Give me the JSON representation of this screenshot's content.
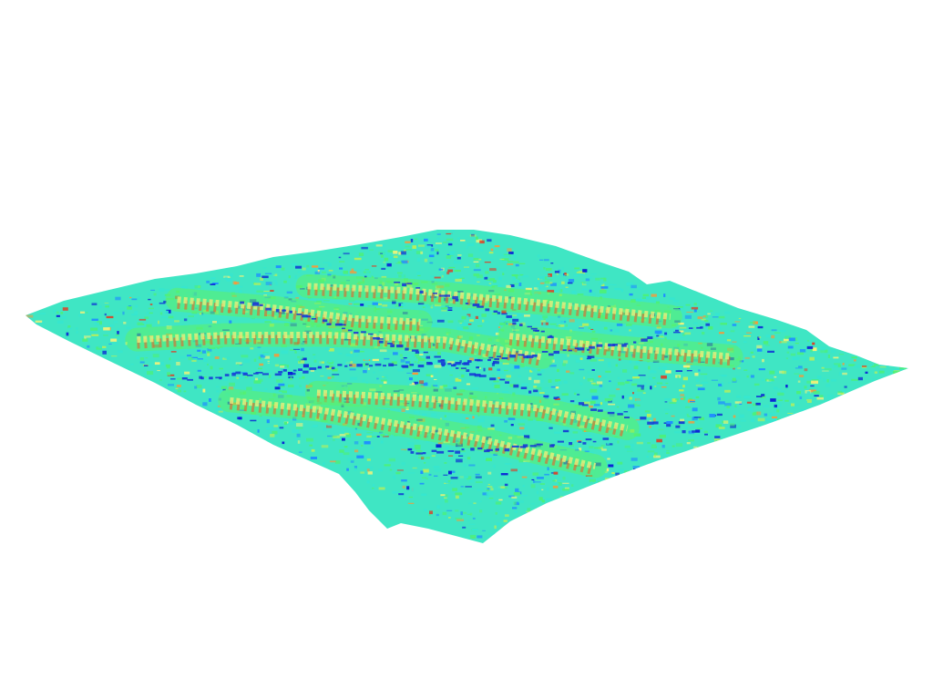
{
  "scene": {
    "background_color": "#ffffff",
    "render_style": "3d-terrain-surface-mesh",
    "colormap": [
      "#0a1fd6",
      "#1f8fff",
      "#36e6d0",
      "#4cf07a",
      "#b9ef5a",
      "#f2f27a",
      "#f59a3a",
      "#d8432a"
    ],
    "dominant_colors": {
      "valley": "#1433d8",
      "plain": "#3fe6c4",
      "slope": "#5cf06c",
      "ridge": "#e9ef7c",
      "steep_face": "#e06a2e"
    }
  }
}
